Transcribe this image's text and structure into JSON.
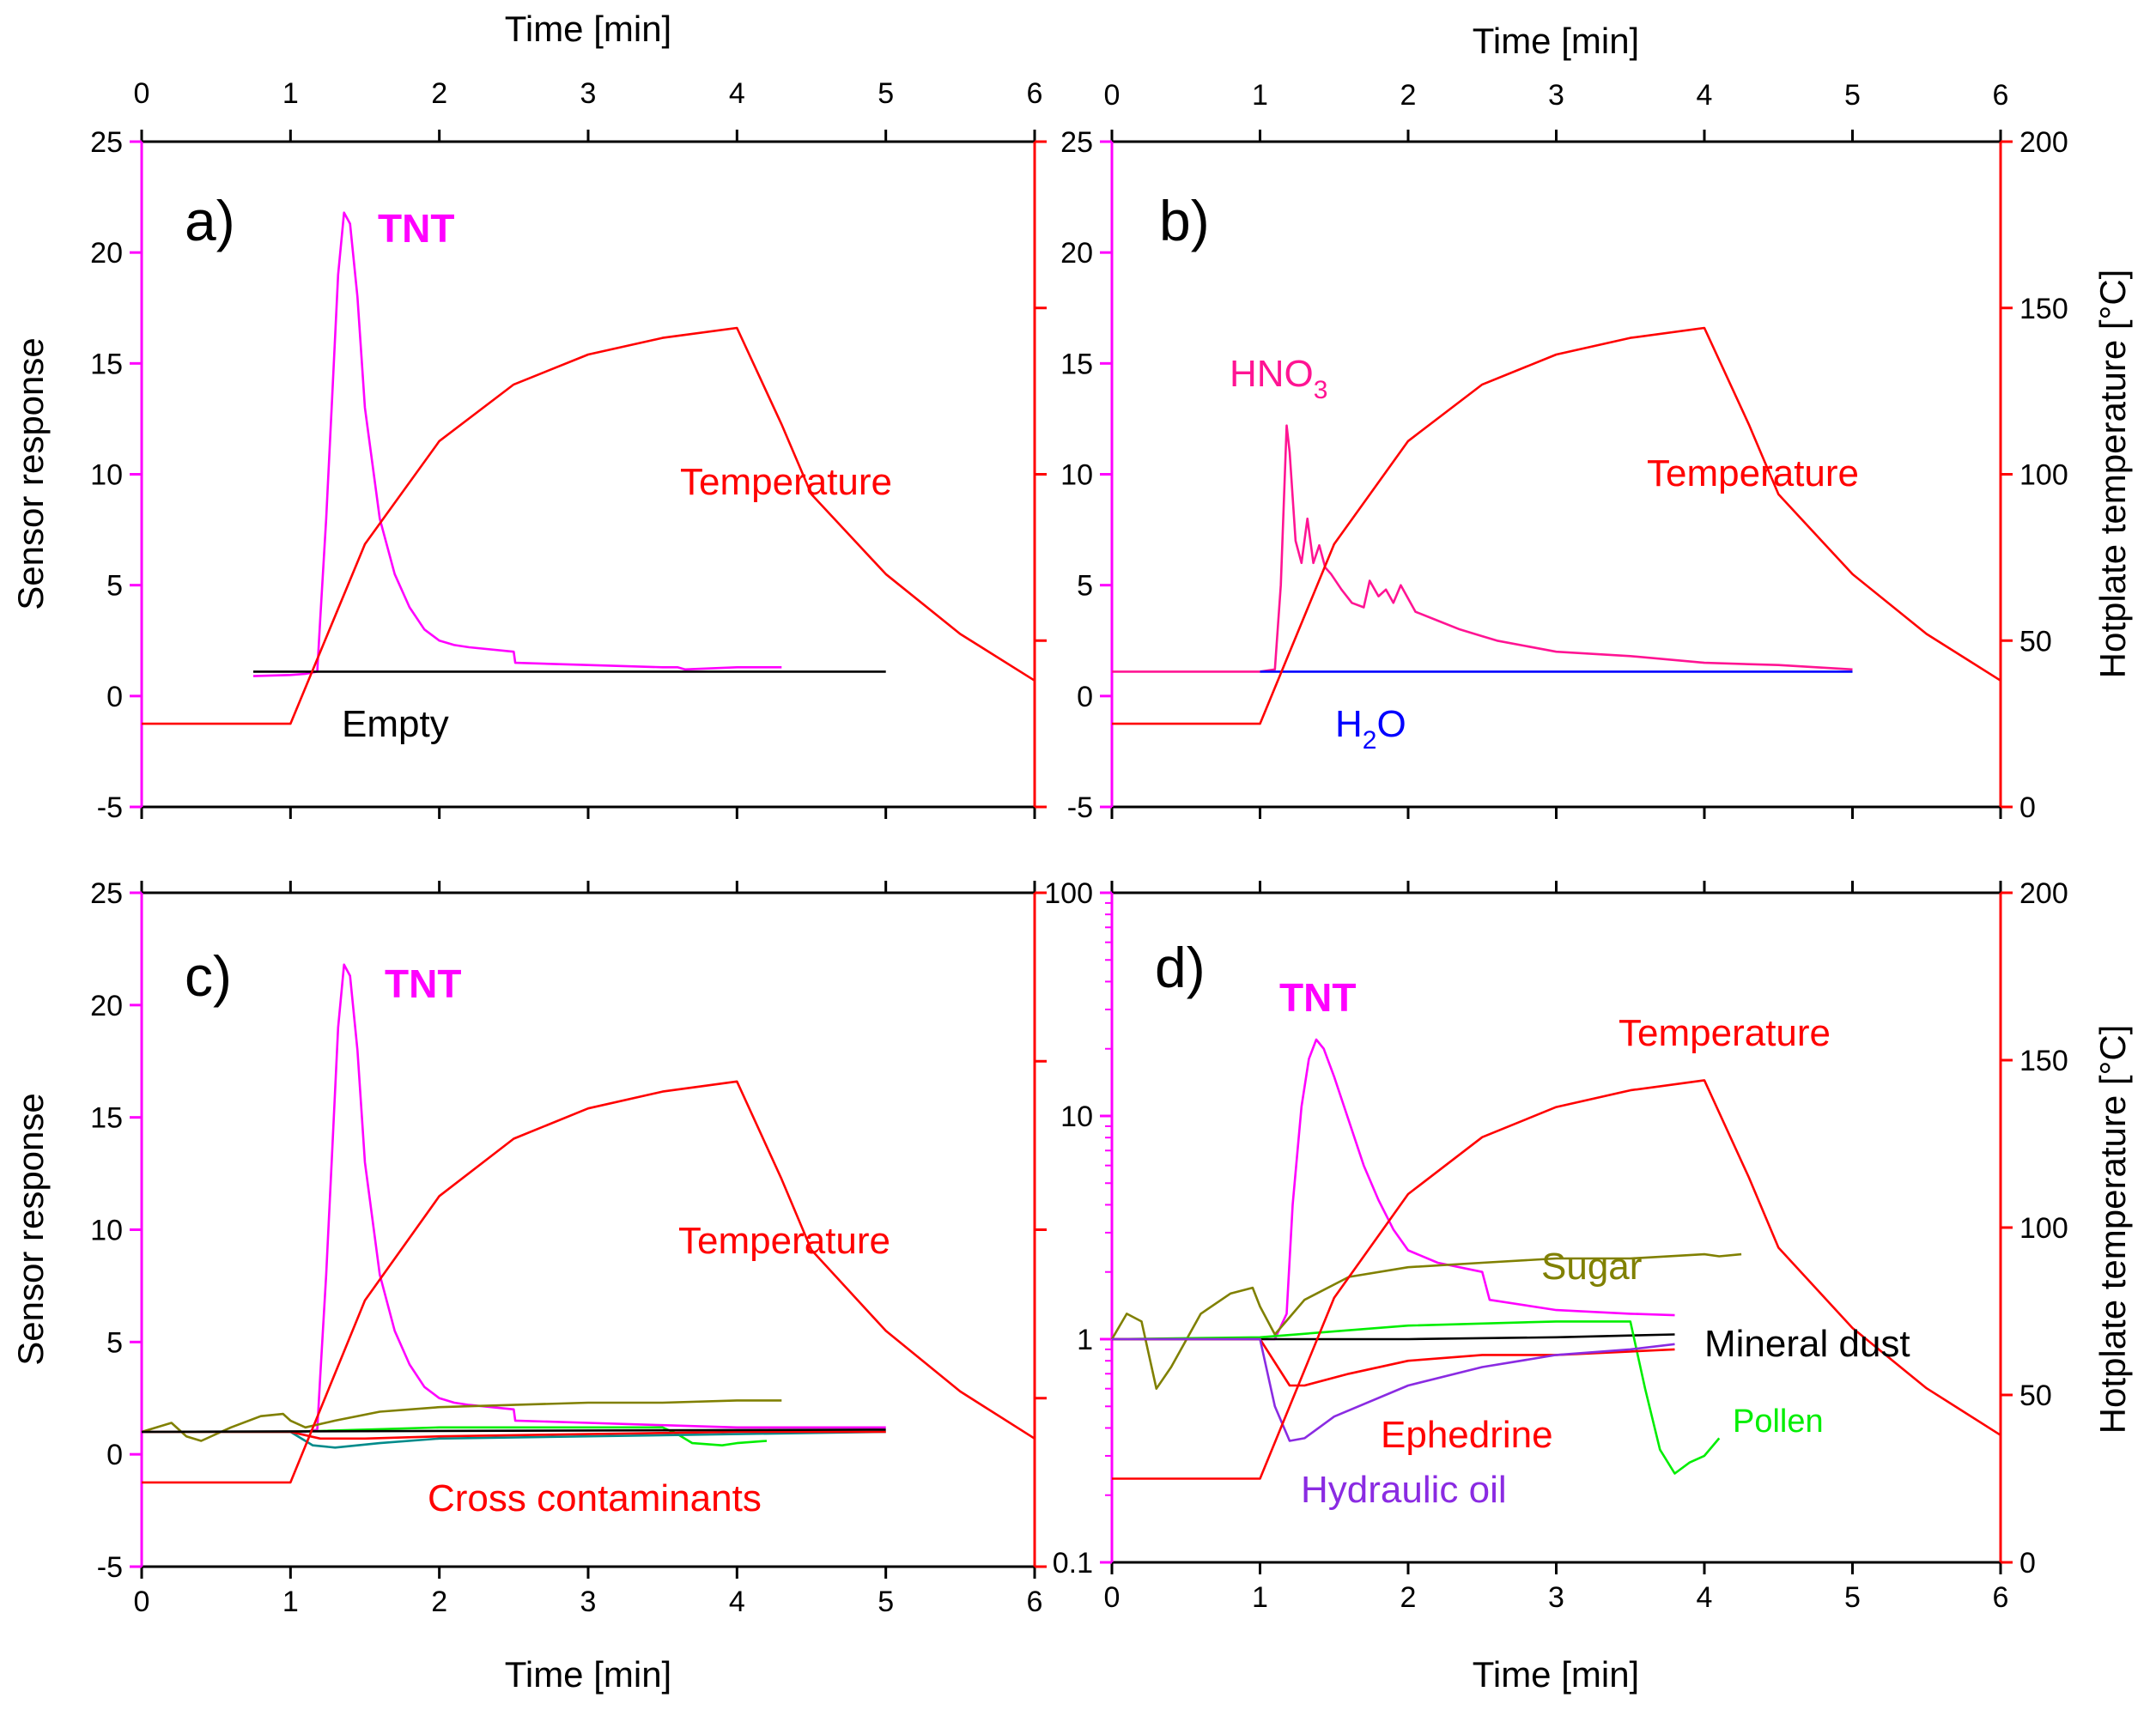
{
  "chart_data": [
    {
      "panel_label": "a)",
      "type": "line",
      "xlabel": "Time [min]",
      "top_xlabel": "Time [min]",
      "xlim": [
        0,
        6
      ],
      "xticks": [
        "0",
        "1",
        "2",
        "3",
        "4",
        "5",
        "6"
      ],
      "ylabel": "Sensor response",
      "ylim": [
        -5,
        25
      ],
      "yticks": [
        "-5",
        "0",
        "5",
        "10",
        "15",
        "20",
        "25"
      ],
      "y2label": "",
      "y2lim": [
        0,
        200
      ],
      "y2ticks": [],
      "annotations": [
        "TNT",
        "Temperature",
        "Empty"
      ],
      "series": [
        {
          "name": "TNT",
          "axis": "left",
          "color": "#ff00ff",
          "x": [
            0.75,
            1.0,
            1.1,
            1.18,
            1.2,
            1.24,
            1.28,
            1.32,
            1.36,
            1.4,
            1.45,
            1.5,
            1.6,
            1.7,
            1.8,
            1.9,
            2.0,
            2.1,
            2.2,
            2.5,
            2.51,
            3.0,
            3.5,
            3.6,
            3.65,
            4.0,
            4.3
          ],
          "y": [
            0.9,
            0.95,
            1.0,
            1.1,
            3.5,
            8.0,
            13.5,
            19.0,
            21.8,
            21.3,
            18.0,
            13.0,
            8.0,
            5.5,
            4.0,
            3.0,
            2.5,
            2.3,
            2.2,
            2.0,
            1.5,
            1.4,
            1.3,
            1.3,
            1.2,
            1.3,
            1.3
          ]
        },
        {
          "name": "Empty",
          "axis": "left",
          "color": "#000000",
          "x": [
            0.75,
            5.0
          ],
          "y": [
            1.1,
            1.1
          ]
        },
        {
          "name": "Temperature",
          "axis": "right",
          "color": "#ff0000",
          "x": [
            0,
            1.0,
            1.5,
            2.0,
            2.5,
            3.0,
            3.5,
            4.0,
            4.3,
            4.5,
            5.0,
            5.5,
            6.0
          ],
          "y": [
            25,
            25,
            79,
            110,
            127,
            136,
            141,
            144,
            115,
            94,
            70,
            52,
            38
          ]
        }
      ]
    },
    {
      "panel_label": "b)",
      "type": "line",
      "xlabel": "",
      "top_xlabel": "Time [min]",
      "xlim": [
        0,
        6
      ],
      "xticks": [
        "0",
        "1",
        "2",
        "3",
        "4",
        "5",
        "6"
      ],
      "ylabel": "",
      "ylim": [
        -5,
        25
      ],
      "yticks": [
        "-5",
        "0",
        "5",
        "10",
        "15",
        "20",
        "25"
      ],
      "y2label": "Hotplate temperature [°C]",
      "y2lim": [
        0,
        200
      ],
      "y2ticks": [
        "0",
        "50",
        "100",
        "150",
        "200"
      ],
      "annotations": [
        "HNO",
        "3",
        "Temperature",
        "H",
        "2",
        "O"
      ],
      "series": [
        {
          "name": "HNO3",
          "axis": "left",
          "color": "#ff1493",
          "x": [
            0.0,
            1.0,
            1.1,
            1.14,
            1.18,
            1.2,
            1.24,
            1.28,
            1.32,
            1.36,
            1.4,
            1.44,
            1.48,
            1.55,
            1.62,
            1.7,
            1.74,
            1.8,
            1.85,
            1.9,
            1.95,
            2.05,
            2.2,
            2.35,
            2.5,
            2.6,
            3.0,
            3.5,
            4.0,
            4.5,
            5.0
          ],
          "y": [
            1.1,
            1.1,
            1.2,
            5.0,
            12.2,
            11.0,
            7.0,
            6.0,
            8.0,
            6.0,
            6.8,
            5.8,
            5.5,
            4.8,
            4.2,
            4.0,
            5.2,
            4.5,
            4.8,
            4.2,
            5.0,
            3.8,
            3.4,
            3.0,
            2.7,
            2.5,
            2.0,
            1.8,
            1.5,
            1.4,
            1.2
          ]
        },
        {
          "name": "H2O",
          "axis": "left",
          "color": "#0000ff",
          "x": [
            1.0,
            5.0
          ],
          "y": [
            1.1,
            1.1
          ]
        },
        {
          "name": "Temperature",
          "axis": "right",
          "color": "#ff0000",
          "x": [
            0,
            1.0,
            1.5,
            2.0,
            2.5,
            3.0,
            3.5,
            4.0,
            4.3,
            4.5,
            5.0,
            5.5,
            6.0
          ],
          "y": [
            25,
            25,
            79,
            110,
            127,
            136,
            141,
            144,
            115,
            94,
            70,
            52,
            38
          ]
        }
      ]
    },
    {
      "panel_label": "c)",
      "type": "line",
      "xlabel": "Time [min]",
      "top_xlabel": "",
      "xlim": [
        0,
        6
      ],
      "xticks": [
        "0",
        "1",
        "2",
        "3",
        "4",
        "5",
        "6"
      ],
      "ylabel": "Sensor response",
      "ylim": [
        -5,
        25
      ],
      "yticks": [
        "-5",
        "0",
        "5",
        "10",
        "15",
        "20",
        "25"
      ],
      "y2label": "",
      "y2lim": [
        0,
        200
      ],
      "y2ticks": [],
      "annotations": [
        "TNT",
        "Temperature",
        "Cross contaminants"
      ],
      "series": [
        {
          "name": "TNT",
          "axis": "left",
          "color": "#ff00ff",
          "x": [
            0.0,
            1.0,
            1.1,
            1.18,
            1.2,
            1.24,
            1.28,
            1.32,
            1.36,
            1.4,
            1.45,
            1.5,
            1.6,
            1.7,
            1.8,
            1.9,
            2.0,
            2.1,
            2.2,
            2.5,
            2.51,
            3.0,
            3.5,
            4.0,
            4.5,
            5.0
          ],
          "y": [
            1.0,
            1.0,
            1.0,
            1.1,
            3.5,
            8.0,
            13.5,
            19.0,
            21.8,
            21.3,
            18.0,
            13.0,
            8.0,
            5.5,
            4.0,
            3.0,
            2.5,
            2.3,
            2.2,
            2.0,
            1.5,
            1.4,
            1.3,
            1.2,
            1.2,
            1.2
          ]
        },
        {
          "axis": "left",
          "color": "#808000",
          "x": [
            0.0,
            0.2,
            0.3,
            0.4,
            0.6,
            0.8,
            0.95,
            1.0,
            1.1,
            1.3,
            1.6,
            2.0,
            2.5,
            3.0,
            3.5,
            4.0,
            4.3
          ],
          "y": [
            1.0,
            1.4,
            0.8,
            0.6,
            1.2,
            1.7,
            1.8,
            1.5,
            1.2,
            1.5,
            1.9,
            2.1,
            2.2,
            2.3,
            2.3,
            2.4,
            2.4
          ]
        },
        {
          "axis": "left",
          "color": "#00ee00",
          "x": [
            0.0,
            1.0,
            2.0,
            3.0,
            3.5,
            3.6,
            3.7,
            3.9,
            4.0,
            4.2
          ],
          "y": [
            1.0,
            1.0,
            1.2,
            1.2,
            1.2,
            0.9,
            0.5,
            0.4,
            0.5,
            0.6
          ]
        },
        {
          "axis": "left",
          "color": "#008b8b",
          "x": [
            0.0,
            1.0,
            1.15,
            1.3,
            1.6,
            2.0,
            3.0,
            4.0,
            5.0
          ],
          "y": [
            1.0,
            1.0,
            0.4,
            0.3,
            0.5,
            0.7,
            0.8,
            0.9,
            1.0
          ]
        },
        {
          "axis": "left",
          "color": "#ff0000",
          "x": [
            0.0,
            1.0,
            1.2,
            1.5,
            2.0,
            3.0,
            4.0,
            5.0
          ],
          "y": [
            1.0,
            1.0,
            0.7,
            0.7,
            0.8,
            0.9,
            1.0,
            1.0
          ]
        },
        {
          "axis": "left",
          "color": "#000000",
          "x": [
            0.0,
            5.0
          ],
          "y": [
            1.0,
            1.1
          ]
        },
        {
          "name": "Temperature",
          "axis": "right",
          "color": "#ff0000",
          "x": [
            0,
            1.0,
            1.5,
            2.0,
            2.5,
            3.0,
            3.5,
            4.0,
            4.3,
            4.5,
            5.0,
            5.5,
            6.0
          ],
          "y": [
            25,
            25,
            79,
            110,
            127,
            136,
            141,
            144,
            115,
            94,
            70,
            52,
            38
          ]
        }
      ]
    },
    {
      "panel_label": "d)",
      "type": "line",
      "xlabel": "Time [min]",
      "top_xlabel": "",
      "xlim": [
        0,
        6
      ],
      "xticks": [
        "0",
        "1",
        "2",
        "3",
        "4",
        "5",
        "6"
      ],
      "ylabel": "",
      "yscale": "log",
      "ylim": [
        0.1,
        100
      ],
      "yticks": [
        "0.1",
        "1",
        "10",
        "100"
      ],
      "y2label": "Hotplate temperature [°C]",
      "y2lim": [
        0,
        200
      ],
      "y2ticks": [
        "0",
        "50",
        "100",
        "150",
        "200"
      ],
      "annotations": [
        "TNT",
        "Temperature",
        "Sugar",
        "Mineral dust",
        "Ephedrine",
        "Pollen",
        "Hydraulic oil"
      ],
      "series": [
        {
          "name": "TNT",
          "axis": "left",
          "color": "#ff00ff",
          "x": [
            0.0,
            1.0,
            1.1,
            1.18,
            1.22,
            1.28,
            1.33,
            1.38,
            1.43,
            1.5,
            1.6,
            1.7,
            1.8,
            1.9,
            2.0,
            2.2,
            2.5,
            2.55,
            3.0,
            3.5,
            3.8
          ],
          "y": [
            1.0,
            1.0,
            1.0,
            1.3,
            4.0,
            11.0,
            18.0,
            22.0,
            20.0,
            15.0,
            9.5,
            6.0,
            4.2,
            3.1,
            2.5,
            2.2,
            2.0,
            1.5,
            1.35,
            1.3,
            1.28
          ]
        },
        {
          "name": "Sugar",
          "axis": "left",
          "color": "#808000",
          "x": [
            0.0,
            0.1,
            0.2,
            0.3,
            0.4,
            0.6,
            0.8,
            0.95,
            1.0,
            1.1,
            1.3,
            1.6,
            2.0,
            2.5,
            3.0,
            3.5,
            4.0,
            4.1,
            4.25
          ],
          "y": [
            1.0,
            1.3,
            1.2,
            0.6,
            0.75,
            1.3,
            1.6,
            1.7,
            1.4,
            1.05,
            1.5,
            1.9,
            2.1,
            2.2,
            2.3,
            2.3,
            2.4,
            2.35,
            2.4
          ]
        },
        {
          "name": "Mineral dust",
          "axis": "left",
          "color": "#000000",
          "x": [
            0.0,
            1.0,
            2.0,
            3.0,
            3.8
          ],
          "y": [
            1.0,
            1.0,
            1.0,
            1.02,
            1.05
          ]
        },
        {
          "name": "Pollen",
          "axis": "left",
          "color": "#00ee00",
          "x": [
            0.0,
            1.0,
            2.0,
            3.0,
            3.5,
            3.6,
            3.7,
            3.8,
            3.9,
            4.0,
            4.1
          ],
          "y": [
            1.0,
            1.02,
            1.15,
            1.2,
            1.2,
            0.6,
            0.32,
            0.25,
            0.28,
            0.3,
            0.36
          ]
        },
        {
          "name": "Ephedrine",
          "axis": "left",
          "color": "#ff0000",
          "x": [
            0.0,
            1.0,
            1.2,
            1.3,
            1.6,
            2.0,
            2.5,
            3.0,
            3.5,
            3.8
          ],
          "y": [
            1.0,
            1.0,
            0.62,
            0.62,
            0.7,
            0.8,
            0.85,
            0.85,
            0.88,
            0.9
          ]
        },
        {
          "name": "Hydraulic oil",
          "axis": "left",
          "color": "#8a2be2",
          "x": [
            0.0,
            1.0,
            1.1,
            1.2,
            1.3,
            1.5,
            2.0,
            2.5,
            3.0,
            3.5,
            3.8
          ],
          "y": [
            1.0,
            1.0,
            0.5,
            0.35,
            0.36,
            0.45,
            0.62,
            0.75,
            0.85,
            0.9,
            0.95
          ]
        },
        {
          "name": "Temperature",
          "axis": "right",
          "color": "#ff0000",
          "x": [
            0,
            1.0,
            1.5,
            2.0,
            2.5,
            3.0,
            3.5,
            4.0,
            4.3,
            4.5,
            5.0,
            5.5,
            6.0
          ],
          "y": [
            25,
            25,
            79,
            110,
            127,
            136,
            141,
            144,
            115,
            94,
            70,
            52,
            38
          ]
        }
      ]
    }
  ]
}
